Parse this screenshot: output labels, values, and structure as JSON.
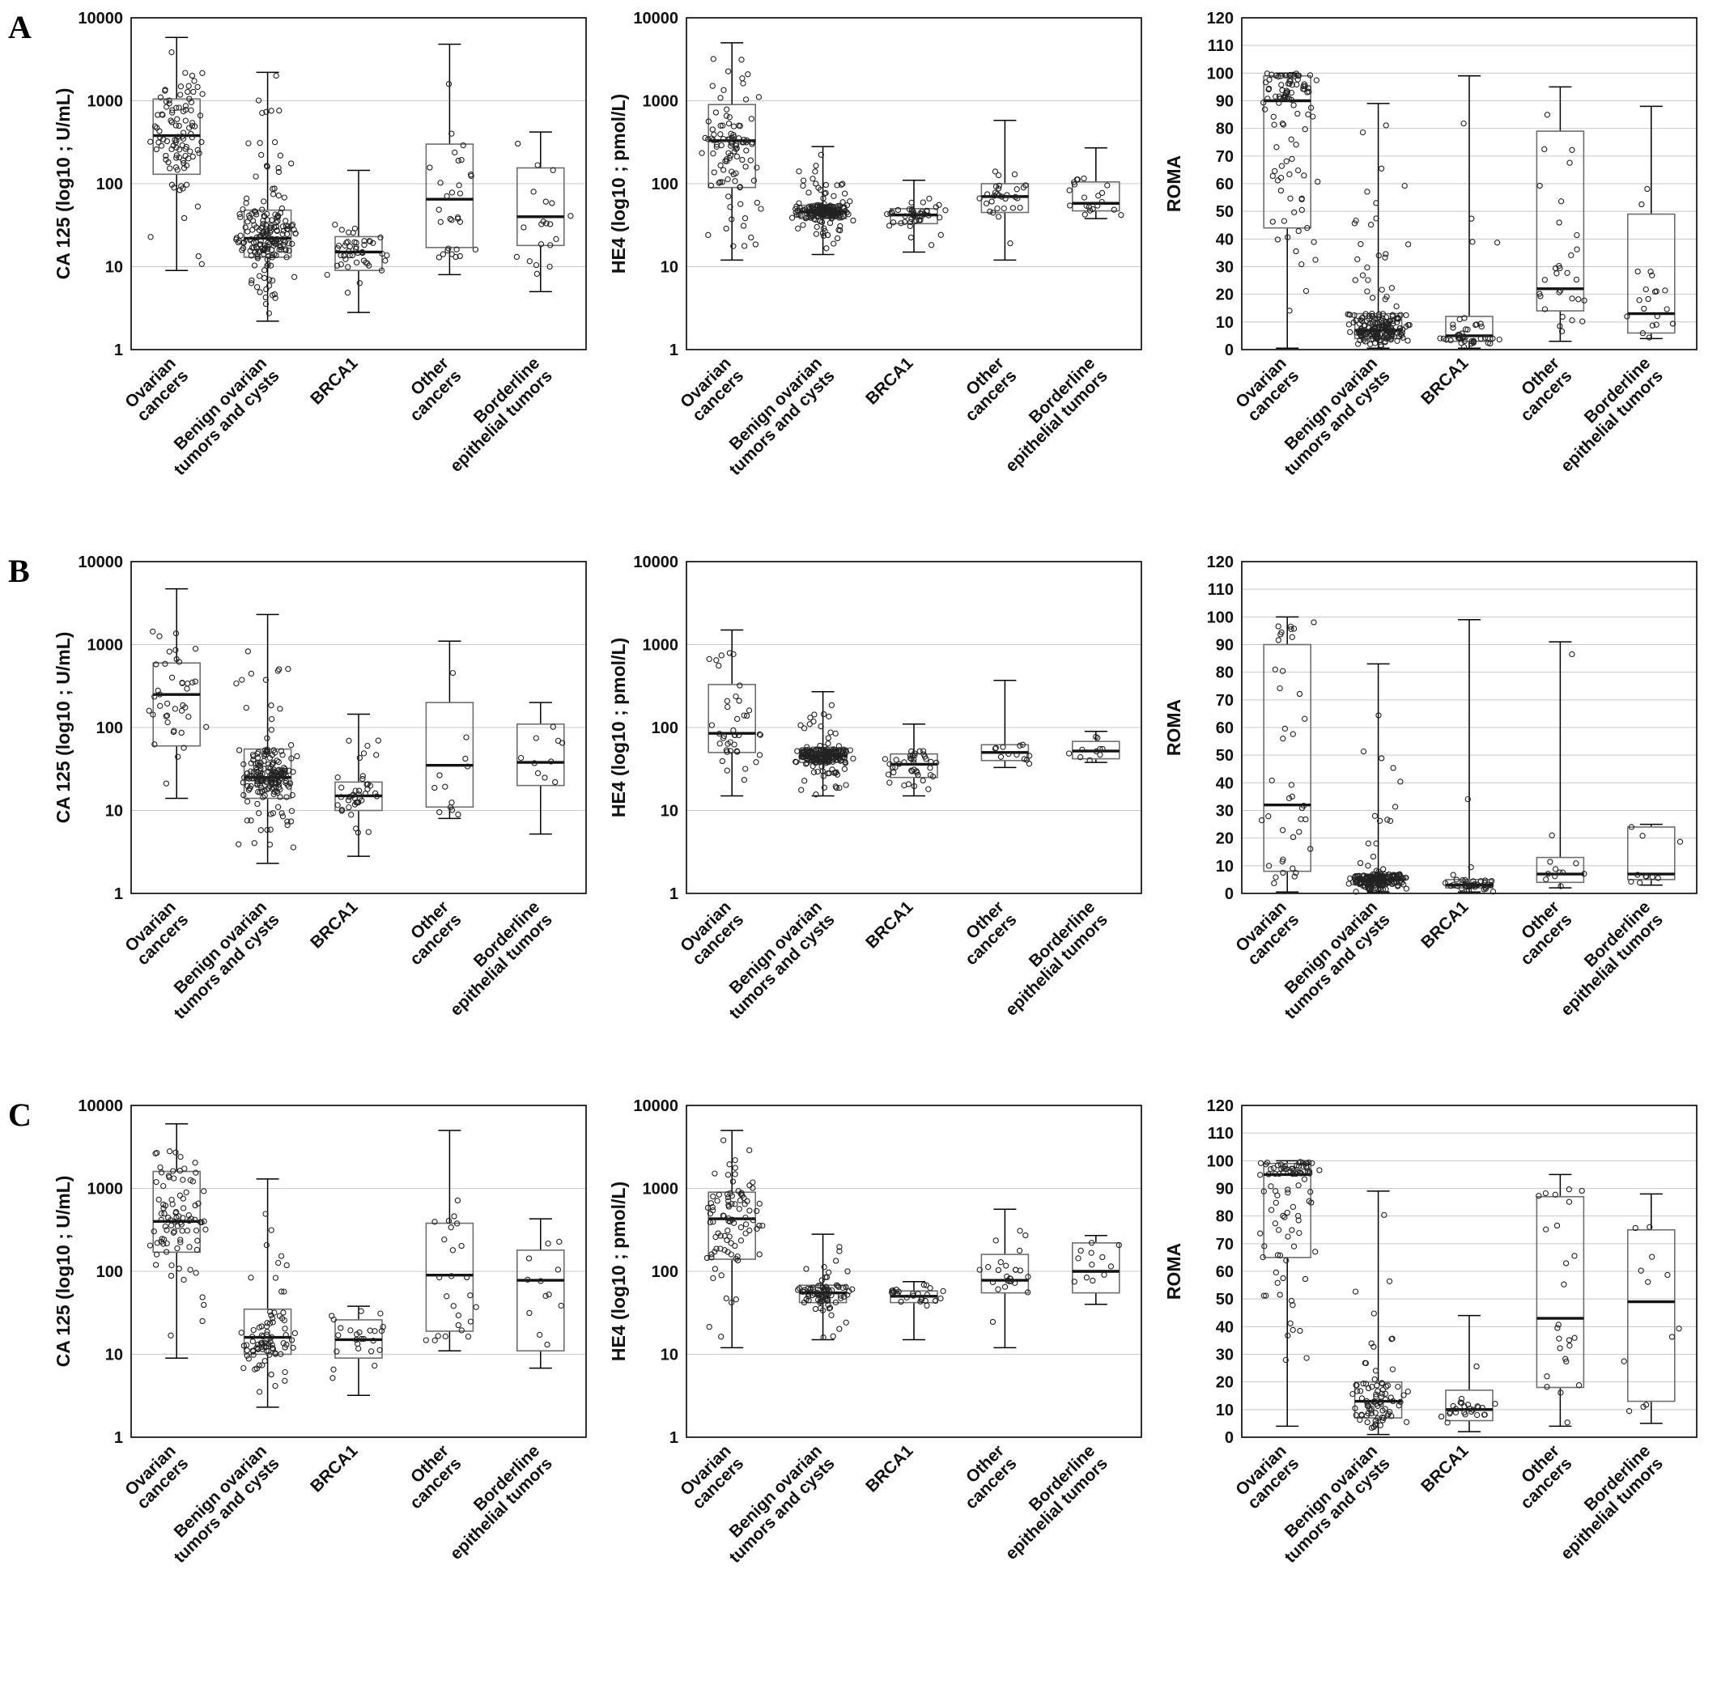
{
  "figure": {
    "rows": [
      {
        "label": "A"
      },
      {
        "label": "B"
      },
      {
        "label": "C"
      }
    ]
  },
  "style": {
    "background": "#ffffff",
    "box_stroke": "#6e6e6e",
    "median_color": "#111111",
    "point_stroke": "#222222",
    "grid_color": "#c8c8c8",
    "axis_color": "#000000"
  },
  "categories": [
    "Ovarian cancers",
    "Benign ovarian tumors and cysts",
    "BRCA1",
    "Other cancers",
    "Borderline epithelial tumors"
  ],
  "category_label_lines": [
    [
      "Ovarian",
      "cancers"
    ],
    [
      "Benign ovarian",
      "tumors and cysts"
    ],
    [
      "BRCA1"
    ],
    [
      "Other",
      "cancers"
    ],
    [
      "Borderline",
      "epithelial tumors"
    ]
  ],
  "chart_data": [
    {
      "panel": "A-CA125",
      "row": "A",
      "type": "box",
      "ylabel": "CA 125 (log10 ; U/mL)",
      "yscale": "log",
      "ylim": [
        1,
        10000
      ],
      "yticks": [
        1,
        10,
        100,
        1000,
        10000
      ],
      "categories": [
        "Ovarian cancers",
        "Benign ovarian tumors and cysts",
        "BRCA1",
        "Other cancers",
        "Borderline epithelial tumors"
      ],
      "boxes": [
        {
          "category": "Ovarian cancers",
          "lo": 9,
          "q1": 130,
          "median": 380,
          "q3": 1050,
          "hi": 5800,
          "n": 100
        },
        {
          "category": "Benign ovarian tumors and cysts",
          "lo": 2.2,
          "q1": 13,
          "median": 22,
          "q3": 48,
          "hi": 2200,
          "n": 190
        },
        {
          "category": "BRCA1",
          "lo": 2.8,
          "q1": 9,
          "median": 15,
          "q3": 23,
          "hi": 145,
          "n": 45
        },
        {
          "category": "Other cancers",
          "lo": 8,
          "q1": 17,
          "median": 65,
          "q3": 300,
          "hi": 4800,
          "n": 30
        },
        {
          "category": "Borderline epithelial tumors",
          "lo": 5,
          "q1": 18,
          "median": 40,
          "q3": 155,
          "hi": 420,
          "n": 20
        }
      ]
    },
    {
      "panel": "A-HE4",
      "row": "A",
      "type": "box",
      "ylabel": "HE4 (log10 ; pmol/L)",
      "yscale": "log",
      "ylim": [
        1,
        10000
      ],
      "yticks": [
        1,
        10,
        100,
        1000,
        10000
      ],
      "categories": [
        "Ovarian cancers",
        "Benign ovarian tumors and cysts",
        "BRCA1",
        "Other cancers",
        "Borderline epithelial tumors"
      ],
      "boxes": [
        {
          "category": "Ovarian cancers",
          "lo": 12,
          "q1": 90,
          "median": 330,
          "q3": 900,
          "hi": 5000,
          "n": 100
        },
        {
          "category": "Benign ovarian tumors and cysts",
          "lo": 14,
          "q1": 38,
          "median": 46,
          "q3": 55,
          "hi": 280,
          "n": 190
        },
        {
          "category": "BRCA1",
          "lo": 15,
          "q1": 33,
          "median": 42,
          "q3": 50,
          "hi": 110,
          "n": 45
        },
        {
          "category": "Other cancers",
          "lo": 12,
          "q1": 45,
          "median": 70,
          "q3": 100,
          "hi": 580,
          "n": 30
        },
        {
          "category": "Borderline epithelial tumors",
          "lo": 38,
          "q1": 47,
          "median": 58,
          "q3": 105,
          "hi": 270,
          "n": 20
        }
      ]
    },
    {
      "panel": "A-ROMA",
      "row": "A",
      "type": "box",
      "ylabel": "ROMA",
      "yscale": "linear",
      "ylim": [
        0,
        120
      ],
      "yticks": [
        0,
        10,
        20,
        30,
        40,
        50,
        60,
        70,
        80,
        90,
        100,
        110,
        120
      ],
      "categories": [
        "Ovarian cancers",
        "Benign ovarian tumors and cysts",
        "BRCA1",
        "Other cancers",
        "Borderline epithelial tumors"
      ],
      "boxes": [
        {
          "category": "Ovarian cancers",
          "lo": 0.5,
          "q1": 44,
          "median": 90,
          "q3": 99,
          "hi": 100,
          "n": 100
        },
        {
          "category": "Benign ovarian tumors and cysts",
          "lo": 0.5,
          "q1": 4,
          "median": 7,
          "q3": 13,
          "hi": 89,
          "n": 190
        },
        {
          "category": "BRCA1",
          "lo": 0.5,
          "q1": 3,
          "median": 5,
          "q3": 12,
          "hi": 99,
          "n": 45
        },
        {
          "category": "Other cancers",
          "lo": 3,
          "q1": 14,
          "median": 22,
          "q3": 79,
          "hi": 95,
          "n": 30
        },
        {
          "category": "Borderline epithelial tumors",
          "lo": 4,
          "q1": 6,
          "median": 13,
          "q3": 49,
          "hi": 88,
          "n": 20
        }
      ]
    },
    {
      "panel": "B-CA125",
      "row": "B",
      "type": "box",
      "ylabel": "CA 125 (log10 ; U/mL)",
      "yscale": "log",
      "ylim": [
        1,
        10000
      ],
      "yticks": [
        1,
        10,
        100,
        1000,
        10000
      ],
      "categories": [
        "Ovarian cancers",
        "Benign ovarian tumors and cysts",
        "BRCA1",
        "Other cancers",
        "Borderline epithelial tumors"
      ],
      "boxes": [
        {
          "category": "Ovarian cancers",
          "lo": 14,
          "q1": 60,
          "median": 250,
          "q3": 600,
          "hi": 4700,
          "n": 40
        },
        {
          "category": "Benign ovarian tumors and cysts",
          "lo": 2.3,
          "q1": 14,
          "median": 25,
          "q3": 55,
          "hi": 2300,
          "n": 190
        },
        {
          "category": "BRCA1",
          "lo": 2.8,
          "q1": 10,
          "median": 15,
          "q3": 22,
          "hi": 145,
          "n": 40
        },
        {
          "category": "Other cancers",
          "lo": 8,
          "q1": 11,
          "median": 35,
          "q3": 200,
          "hi": 1100,
          "n": 12
        },
        {
          "category": "Borderline epithelial tumors",
          "lo": 5.2,
          "q1": 20,
          "median": 38,
          "q3": 110,
          "hi": 200,
          "n": 10
        }
      ]
    },
    {
      "panel": "B-HE4",
      "row": "B",
      "type": "box",
      "ylabel": "HE4 (log10 ; pmol/L)",
      "yscale": "log",
      "ylim": [
        1,
        10000
      ],
      "yticks": [
        1,
        10,
        100,
        1000,
        10000
      ],
      "categories": [
        "Ovarian cancers",
        "Benign ovarian tumors and cysts",
        "BRCA1",
        "Other cancers",
        "Borderline epithelial tumors"
      ],
      "boxes": [
        {
          "category": "Ovarian cancers",
          "lo": 15,
          "q1": 50,
          "median": 85,
          "q3": 330,
          "hi": 1500,
          "n": 40
        },
        {
          "category": "Benign ovarian tumors and cysts",
          "lo": 15,
          "q1": 38,
          "median": 46,
          "q3": 55,
          "hi": 270,
          "n": 190
        },
        {
          "category": "BRCA1",
          "lo": 15,
          "q1": 25,
          "median": 36,
          "q3": 48,
          "hi": 110,
          "n": 40
        },
        {
          "category": "Other cancers",
          "lo": 33,
          "q1": 40,
          "median": 50,
          "q3": 62,
          "hi": 370,
          "n": 12
        },
        {
          "category": "Borderline epithelial tumors",
          "lo": 38,
          "q1": 42,
          "median": 52,
          "q3": 68,
          "hi": 90,
          "n": 10
        }
      ]
    },
    {
      "panel": "B-ROMA",
      "row": "B",
      "type": "box",
      "ylabel": "ROMA",
      "yscale": "linear",
      "ylim": [
        0,
        120
      ],
      "yticks": [
        0,
        10,
        20,
        30,
        40,
        50,
        60,
        70,
        80,
        90,
        100,
        110,
        120
      ],
      "categories": [
        "Ovarian cancers",
        "Benign ovarian tumors and cysts",
        "BRCA1",
        "Other cancers",
        "Borderline epithelial tumors"
      ],
      "boxes": [
        {
          "category": "Ovarian cancers",
          "lo": 0.5,
          "q1": 8,
          "median": 32,
          "q3": 90,
          "hi": 100,
          "n": 40
        },
        {
          "category": "Benign ovarian tumors and cysts",
          "lo": 0.5,
          "q1": 3,
          "median": 5,
          "q3": 7,
          "hi": 83,
          "n": 190
        },
        {
          "category": "BRCA1",
          "lo": 0.5,
          "q1": 2,
          "median": 3,
          "q3": 5,
          "hi": 99,
          "n": 40
        },
        {
          "category": "Other cancers",
          "lo": 2,
          "q1": 4,
          "median": 7,
          "q3": 13,
          "hi": 91,
          "n": 12
        },
        {
          "category": "Borderline epithelial tumors",
          "lo": 3,
          "q1": 5,
          "median": 7,
          "q3": 24,
          "hi": 25,
          "n": 10
        }
      ]
    },
    {
      "panel": "C-CA125",
      "row": "C",
      "type": "box",
      "ylabel": "CA 125 (log10 ; U/mL)",
      "yscale": "log",
      "ylim": [
        1,
        10000
      ],
      "yticks": [
        1,
        10,
        100,
        1000,
        10000
      ],
      "categories": [
        "Ovarian cancers",
        "Benign ovarian tumors and cysts",
        "BRCA1",
        "Other cancers",
        "Borderline epithelial tumors"
      ],
      "boxes": [
        {
          "category": "Ovarian cancers",
          "lo": 9,
          "q1": 170,
          "median": 400,
          "q3": 1600,
          "hi": 6000,
          "n": 90
        },
        {
          "category": "Benign ovarian tumors and cysts",
          "lo": 2.3,
          "q1": 10,
          "median": 16,
          "q3": 35,
          "hi": 1300,
          "n": 85
        },
        {
          "category": "BRCA1",
          "lo": 3.2,
          "q1": 9,
          "median": 15,
          "q3": 26,
          "hi": 38,
          "n": 25
        },
        {
          "category": "Other cancers",
          "lo": 11,
          "q1": 19,
          "median": 90,
          "q3": 380,
          "hi": 5000,
          "n": 25
        },
        {
          "category": "Borderline epithelial tumors",
          "lo": 6.8,
          "q1": 11,
          "median": 78,
          "q3": 180,
          "hi": 430,
          "n": 12
        }
      ]
    },
    {
      "panel": "C-HE4",
      "row": "C",
      "type": "box",
      "ylabel": "HE4 (log10 ; pmol/L)",
      "yscale": "log",
      "ylim": [
        1,
        10000
      ],
      "yticks": [
        1,
        10,
        100,
        1000,
        10000
      ],
      "categories": [
        "Ovarian cancers",
        "Benign ovarian tumors and cysts",
        "BRCA1",
        "Other cancers",
        "Borderline epithelial tumors"
      ],
      "boxes": [
        {
          "category": "Ovarian cancers",
          "lo": 12,
          "q1": 140,
          "median": 430,
          "q3": 900,
          "hi": 5000,
          "n": 90
        },
        {
          "category": "Benign ovarian tumors and cysts",
          "lo": 15,
          "q1": 42,
          "median": 55,
          "q3": 68,
          "hi": 280,
          "n": 85
        },
        {
          "category": "BRCA1",
          "lo": 15,
          "q1": 42,
          "median": 50,
          "q3": 58,
          "hi": 75,
          "n": 25
        },
        {
          "category": "Other cancers",
          "lo": 12,
          "q1": 55,
          "median": 78,
          "q3": 160,
          "hi": 560,
          "n": 25
        },
        {
          "category": "Borderline epithelial tumors",
          "lo": 40,
          "q1": 55,
          "median": 100,
          "q3": 220,
          "hi": 270,
          "n": 12
        }
      ]
    },
    {
      "panel": "C-ROMA",
      "row": "C",
      "type": "box",
      "ylabel": "ROMA",
      "yscale": "linear",
      "ylim": [
        0,
        120
      ],
      "yticks": [
        0,
        10,
        20,
        30,
        40,
        50,
        60,
        70,
        80,
        90,
        100,
        110,
        120
      ],
      "categories": [
        "Ovarian cancers",
        "Benign ovarian tumors and cysts",
        "BRCA1",
        "Other cancers",
        "Borderline epithelial tumors"
      ],
      "boxes": [
        {
          "category": "Ovarian cancers",
          "lo": 4,
          "q1": 65,
          "median": 95,
          "q3": 99,
          "hi": 100,
          "n": 90
        },
        {
          "category": "Benign ovarian tumors and cysts",
          "lo": 1,
          "q1": 7,
          "median": 13,
          "q3": 20,
          "hi": 89,
          "n": 85
        },
        {
          "category": "BRCA1",
          "lo": 2,
          "q1": 6,
          "median": 10,
          "q3": 17,
          "hi": 44,
          "n": 25
        },
        {
          "category": "Other cancers",
          "lo": 4,
          "q1": 18,
          "median": 43,
          "q3": 87,
          "hi": 95,
          "n": 25
        },
        {
          "category": "Borderline epithelial tumors",
          "lo": 5,
          "q1": 13,
          "median": 49,
          "q3": 75,
          "hi": 88,
          "n": 12
        }
      ]
    }
  ]
}
